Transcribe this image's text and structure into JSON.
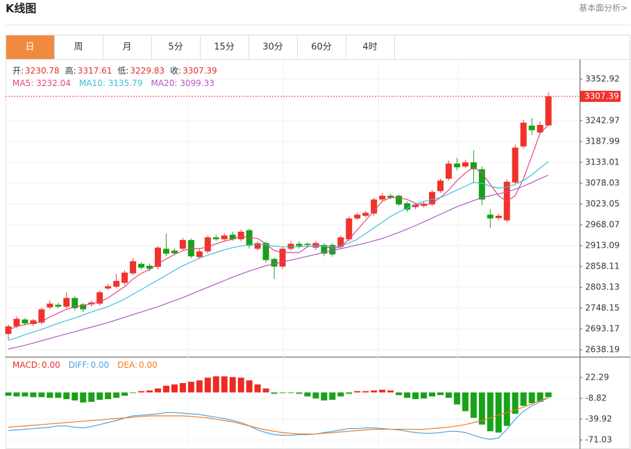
{
  "header": {
    "title": "K线图",
    "link": "基本面分析>"
  },
  "tabs": [
    "日",
    "周",
    "月",
    "5分",
    "15分",
    "30分",
    "60分",
    "4时"
  ],
  "active_tab": 0,
  "chart_data": [
    {
      "type": "candlestick",
      "ohlc_labels": [
        "开:",
        "高:",
        "低:",
        "收:"
      ],
      "open": [
        2680,
        2700,
        2718,
        2706,
        2710,
        2750,
        2757,
        2752,
        2775,
        2758,
        2758,
        2760,
        2800,
        2805,
        2815,
        2840,
        2865,
        2860,
        2857,
        2905,
        2900,
        2905,
        2928,
        2883,
        2898,
        2935,
        2930,
        2942,
        2930,
        2954,
        2905,
        2920,
        2878,
        2858,
        2905,
        2918,
        2918,
        2908,
        2915,
        2915,
        2910,
        2930,
        2985,
        2992,
        2998,
        3035,
        3045,
        3045,
        3025,
        3015,
        3018,
        3022,
        3057,
        3090,
        3130,
        3122,
        3133,
        3115,
        2995,
        2986,
        2980,
        3080,
        3175,
        3230,
        3212,
        3230.78
      ],
      "high": [
        2705,
        2726,
        2722,
        2720,
        2750,
        2768,
        2762,
        2790,
        2780,
        2762,
        2768,
        2795,
        2812,
        2838,
        2848,
        2880,
        2870,
        2866,
        2912,
        2945,
        2906,
        2934,
        2932,
        2904,
        2940,
        2942,
        2946,
        2950,
        2955,
        2958,
        2925,
        2924,
        2882,
        2910,
        2925,
        2925,
        2922,
        2926,
        2920,
        2920,
        2940,
        2990,
        3000,
        3005,
        3040,
        3052,
        3050,
        3048,
        3030,
        3026,
        3030,
        3060,
        3090,
        3138,
        3145,
        3140,
        3165,
        3122,
        3010,
        2998,
        3088,
        3180,
        3245,
        3250,
        3240,
        3317.61
      ],
      "low": [
        2665,
        2695,
        2702,
        2700,
        2705,
        2745,
        2748,
        2748,
        2742,
        2738,
        2752,
        2755,
        2796,
        2800,
        2810,
        2835,
        2850,
        2846,
        2850,
        2885,
        2888,
        2900,
        2880,
        2878,
        2892,
        2925,
        2924,
        2926,
        2925,
        2905,
        2900,
        2868,
        2825,
        2852,
        2900,
        2905,
        2910,
        2902,
        2885,
        2884,
        2905,
        2925,
        2980,
        2988,
        2992,
        3030,
        3036,
        3018,
        3002,
        3010,
        3014,
        3018,
        3052,
        3085,
        3112,
        3118,
        3078,
        3020,
        2960,
        2980,
        2975,
        3075,
        3170,
        3205,
        3208,
        3229.83
      ],
      "close": [
        2700,
        2720,
        2708,
        2716,
        2745,
        2760,
        2752,
        2775,
        2748,
        2745,
        2763,
        2790,
        2806,
        2820,
        2842,
        2872,
        2855,
        2852,
        2908,
        2892,
        2893,
        2928,
        2885,
        2898,
        2935,
        2930,
        2940,
        2930,
        2950,
        2913,
        2920,
        2875,
        2858,
        2905,
        2918,
        2912,
        2915,
        2920,
        2892,
        2890,
        2935,
        2985,
        2995,
        3000,
        3035,
        3045,
        3040,
        3022,
        3008,
        3022,
        3024,
        3055,
        3085,
        3130,
        3120,
        3133,
        3115,
        3035,
        2985,
        2992,
        3082,
        3172,
        3238,
        3218,
        3232,
        3307.39
      ],
      "up_color": "#f0322a",
      "down_color": "#17a217",
      "series": [
        {
          "name": "MA5:",
          "color": "#e0457b",
          "values": [
            2690,
            2700,
            2705,
            2708,
            2712,
            2725,
            2735,
            2745,
            2752,
            2755,
            2760,
            2765,
            2775,
            2790,
            2805,
            2825,
            2840,
            2850,
            2865,
            2878,
            2890,
            2900,
            2905,
            2905,
            2910,
            2918,
            2925,
            2930,
            2938,
            2935,
            2932,
            2918,
            2900,
            2895,
            2895,
            2895,
            2910,
            2915,
            2912,
            2905,
            2910,
            2930,
            2955,
            2980,
            3005,
            3030,
            3040,
            3040,
            3035,
            3025,
            3020,
            3025,
            3040,
            3060,
            3085,
            3105,
            3120,
            3105,
            3075,
            3045,
            3030,
            3045,
            3090,
            3150,
            3210,
            3232.04
          ]
        },
        {
          "name": "MA10:",
          "color": "#3bbfdc",
          "values": [
            2663,
            2670,
            2678,
            2685,
            2692,
            2700,
            2708,
            2715,
            2722,
            2730,
            2738,
            2745,
            2752,
            2762,
            2772,
            2785,
            2797,
            2810,
            2822,
            2835,
            2848,
            2860,
            2870,
            2880,
            2888,
            2895,
            2902,
            2908,
            2912,
            2915,
            2918,
            2915,
            2912,
            2910,
            2910,
            2910,
            2912,
            2912,
            2912,
            2910,
            2912,
            2920,
            2930,
            2945,
            2960,
            2975,
            2990,
            3002,
            3012,
            3022,
            3030,
            3035,
            3040,
            3050,
            3060,
            3070,
            3080,
            3078,
            3070,
            3065,
            3068,
            3075,
            3085,
            3100,
            3118,
            3135.79
          ]
        },
        {
          "name": "MA20:",
          "color": "#b155c4",
          "values": [
            2640,
            2645,
            2650,
            2656,
            2662,
            2668,
            2674,
            2680,
            2686,
            2692,
            2698,
            2704,
            2710,
            2717,
            2724,
            2731,
            2738,
            2745,
            2752,
            2760,
            2768,
            2776,
            2785,
            2794,
            2803,
            2812,
            2821,
            2830,
            2838,
            2846,
            2853,
            2860,
            2865,
            2870,
            2875,
            2880,
            2885,
            2890,
            2895,
            2900,
            2905,
            2910,
            2915,
            2920,
            2926,
            2932,
            2940,
            2948,
            2957,
            2966,
            2976,
            2986,
            2996,
            3006,
            3016,
            3024,
            3032,
            3040,
            3045,
            3050,
            3055,
            3062,
            3070,
            3080,
            3090,
            3099.33
          ]
        }
      ],
      "ylim": [
        2619.86,
        3404.24
      ],
      "yticks": [
        2638.19,
        2693.17,
        2748.15,
        2803.13,
        2858.11,
        2913.09,
        2968.07,
        3023.05,
        3078.03,
        3133.01,
        3187.99,
        3242.97,
        3352.92
      ],
      "grid": true
    },
    {
      "type": "macd",
      "series": [
        {
          "name": "MACD:",
          "color": "#ec2a22",
          "down_color": "#17a217",
          "values": [
            -5,
            -6,
            -6,
            -7,
            -7,
            -8,
            -8,
            -10,
            -12,
            -15,
            -14,
            -11,
            -10,
            -8,
            -5,
            -1,
            2,
            3,
            6,
            10,
            12,
            14,
            16,
            18,
            22,
            24,
            24,
            23,
            22,
            18,
            12,
            6,
            -2,
            -1,
            -1,
            -2,
            -6,
            -9,
            -12,
            -11,
            -6,
            -2,
            2,
            2,
            3,
            4,
            3,
            -4,
            -8,
            -10,
            -9,
            -6,
            -4,
            -8,
            -18,
            -28,
            -38,
            -48,
            -58,
            -60,
            -50,
            -32,
            -20,
            -16,
            -14,
            -7
          ]
        },
        {
          "name": "DIFF:",
          "color": "#4aa3e6",
          "values": [
            -57,
            -56,
            -55,
            -54,
            -53,
            -52,
            -50,
            -50,
            -52,
            -53,
            -51,
            -48,
            -45,
            -42,
            -38,
            -35,
            -34,
            -33,
            -32,
            -30,
            -30,
            -31,
            -32,
            -33,
            -35,
            -37,
            -39,
            -42,
            -45,
            -50,
            -56,
            -60,
            -63,
            -64,
            -64,
            -63,
            -63,
            -62,
            -60,
            -58,
            -56,
            -54,
            -54,
            -53,
            -53,
            -54,
            -55,
            -56,
            -58,
            -60,
            -61,
            -61,
            -60,
            -58,
            -58,
            -60,
            -64,
            -68,
            -70,
            -68,
            -55,
            -40,
            -28,
            -20,
            -14,
            -8
          ]
        },
        {
          "name": "DEA:",
          "color": "#f07a1e",
          "values": [
            -52,
            -51,
            -50,
            -49,
            -48,
            -47,
            -46,
            -45,
            -44,
            -43,
            -42,
            -41,
            -40,
            -39,
            -38,
            -37,
            -36,
            -35,
            -35,
            -35,
            -35,
            -35,
            -36,
            -37,
            -38,
            -40,
            -42,
            -44,
            -47,
            -50,
            -53,
            -56,
            -58,
            -60,
            -61,
            -62,
            -62,
            -62,
            -61,
            -60,
            -59,
            -58,
            -57,
            -56,
            -55,
            -55,
            -55,
            -55,
            -55,
            -55,
            -55,
            -54,
            -53,
            -52,
            -50,
            -48,
            -45,
            -42,
            -38,
            -34,
            -30,
            -26,
            -22,
            -17,
            -12,
            -8
          ]
        }
      ],
      "readout_values": [
        0,
        0,
        0
      ],
      "readout_labels": [
        "0.00",
        "0.00",
        "0.00"
      ],
      "ylim": [
        -84.51,
        53.39
      ],
      "yticks": [
        -71.03,
        -39.92,
        -8.82,
        22.29
      ],
      "grid": true
    }
  ]
}
